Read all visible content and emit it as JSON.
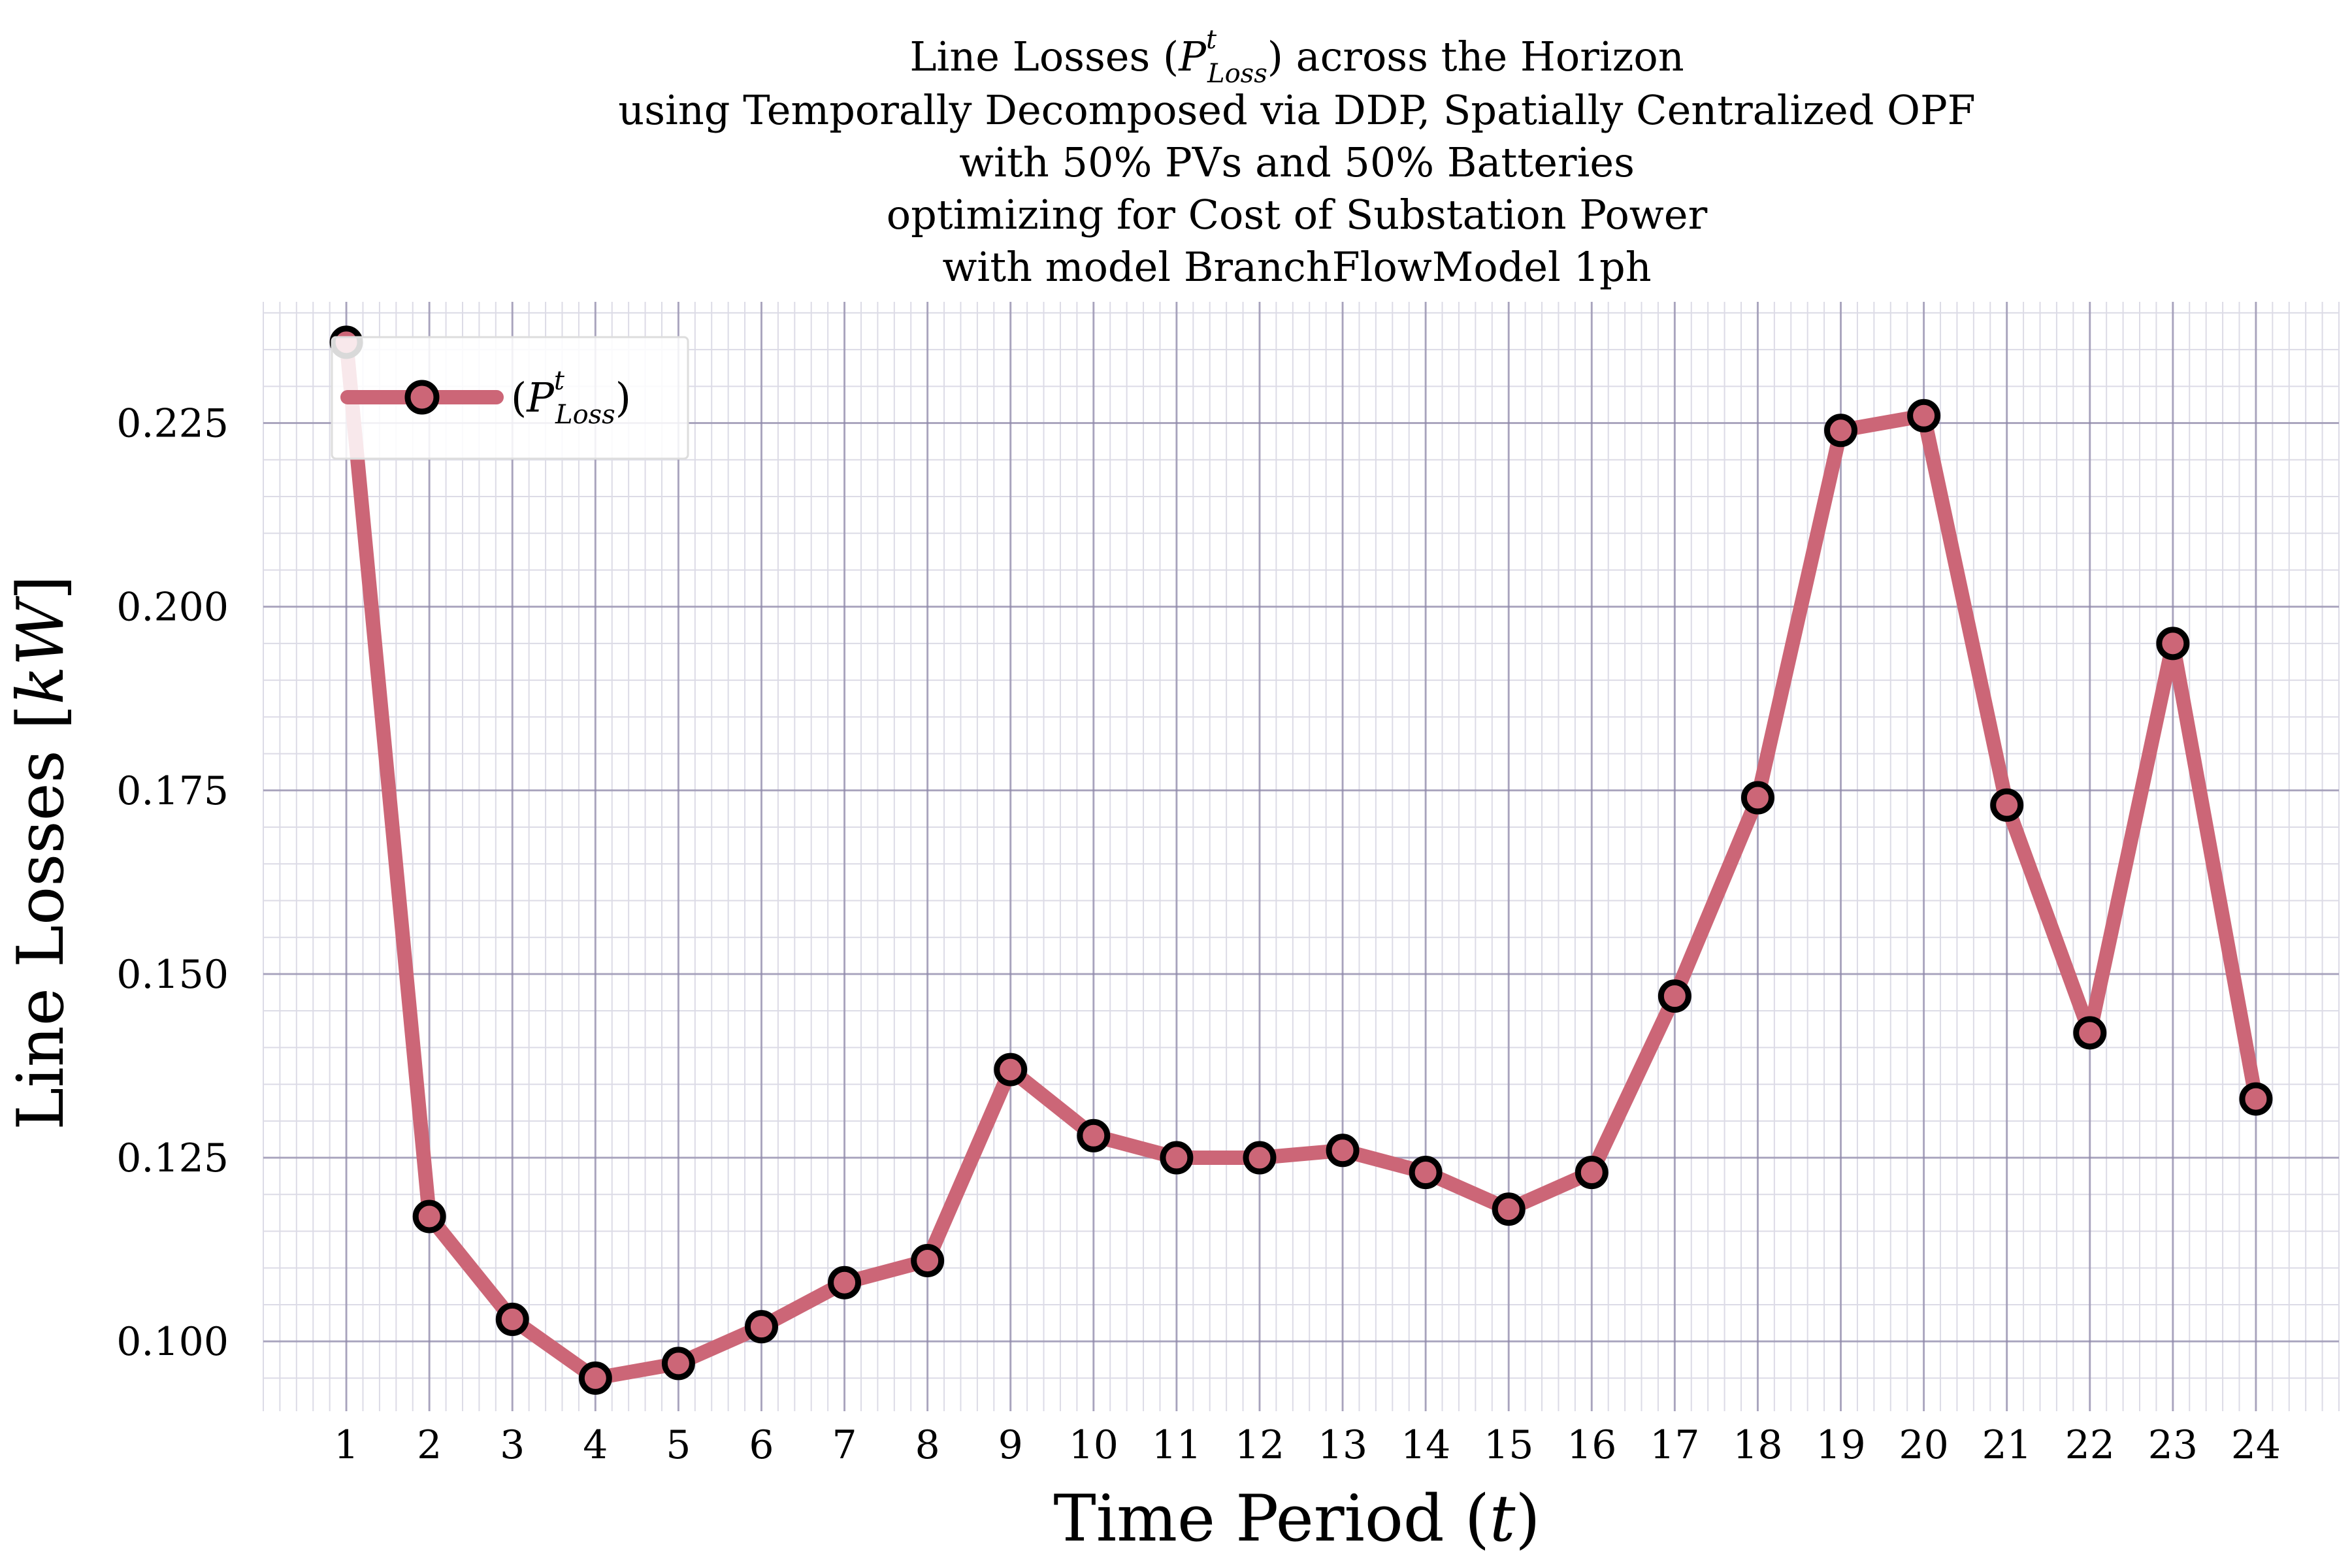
{
  "chart_data": {
    "type": "line",
    "title_lines": [
      "Line Losses (P^t_Loss) across the Horizon",
      "using Temporally Decomposed via DDP, Spatially Centralized OPF",
      "with 50% PVs and 50% Batteries",
      "optimizing for Cost of Substation Power",
      "with model BranchFlowModel 1ph"
    ],
    "title_tokens": {
      "pre": "Line Losses (",
      "sym": "P",
      "sup": "t",
      "sub": "Loss",
      "post": ") across the Horizon"
    },
    "xlabel": {
      "pre": "Time Period (",
      "var": "t",
      "post": ")"
    },
    "ylabel": {
      "pre": "Line Losses [",
      "var": "kW",
      "post": "]"
    },
    "x": [
      1,
      2,
      3,
      4,
      5,
      6,
      7,
      8,
      9,
      10,
      11,
      12,
      13,
      14,
      15,
      16,
      17,
      18,
      19,
      20,
      21,
      22,
      23,
      24
    ],
    "x_ticks": [
      "1",
      "2",
      "3",
      "4",
      "5",
      "6",
      "7",
      "8",
      "9",
      "10",
      "11",
      "12",
      "13",
      "14",
      "15",
      "16",
      "17",
      "18",
      "19",
      "20",
      "21",
      "22",
      "23",
      "24"
    ],
    "y_ticks": [
      0.1,
      0.125,
      0.15,
      0.175,
      0.2,
      0.225
    ],
    "y_tick_labels": [
      "0.100",
      "0.125",
      "0.150",
      "0.175",
      "0.200",
      "0.225"
    ],
    "xlim": [
      0.0,
      25.0
    ],
    "ylim": [
      0.0905,
      0.2415
    ],
    "grid": true,
    "legend_position": "top-left",
    "series": [
      {
        "name": "(P^t_Loss)",
        "legend": {
          "pre": "(",
          "sym": "P",
          "sup": "t",
          "sub": "Loss",
          "post": ")"
        },
        "color": "#cc6677",
        "marker_edge": "#000000",
        "values": [
          0.236,
          0.117,
          0.103,
          0.095,
          0.097,
          0.102,
          0.108,
          0.111,
          0.137,
          0.128,
          0.125,
          0.125,
          0.126,
          0.123,
          0.118,
          0.123,
          0.147,
          0.174,
          0.224,
          0.226,
          0.173,
          0.142,
          0.195,
          0.133
        ]
      }
    ],
    "colors": {
      "grid_major": "#8a84a6",
      "grid_minor": "#dcdbe6",
      "text": "#000000"
    }
  }
}
